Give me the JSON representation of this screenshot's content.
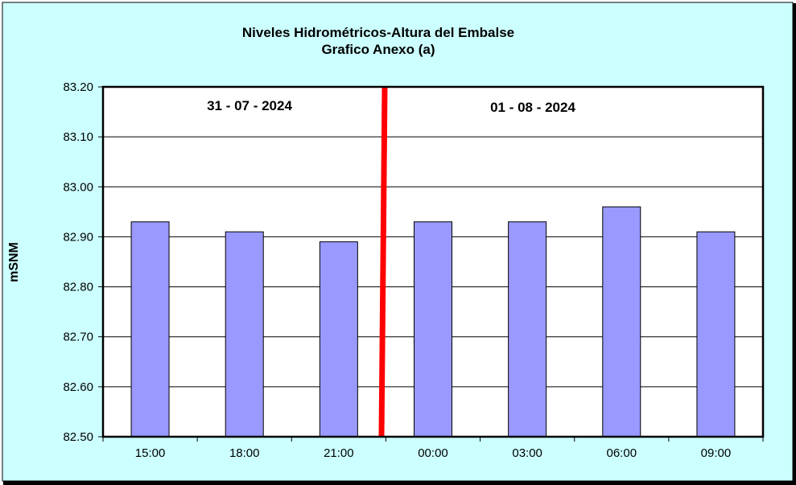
{
  "chart_data": {
    "type": "bar",
    "title": "Niveles Hidrométricos-Altura del Embalse",
    "subtitle": "Grafico Anexo (a)",
    "xlabel": "",
    "ylabel": "mSNM",
    "ylim": [
      82.5,
      83.2
    ],
    "yticks": [
      "82.50",
      "82.60",
      "82.70",
      "82.80",
      "82.90",
      "83.00",
      "83.10",
      "83.20"
    ],
    "categories": [
      "15:00",
      "18:00",
      "21:00",
      "00:00",
      "03:00",
      "06:00",
      "09:00"
    ],
    "values": [
      82.93,
      82.91,
      82.89,
      82.93,
      82.93,
      82.96,
      82.91
    ],
    "grid": true,
    "annotations": {
      "date_left": "31 - 07 - 2024",
      "date_right": "01 - 08 - 2024"
    },
    "colors": {
      "background": "#CCFFFF",
      "plot": "#FFFFFF",
      "bar": "#9999FF",
      "day_divider": "#FF0000"
    }
  }
}
